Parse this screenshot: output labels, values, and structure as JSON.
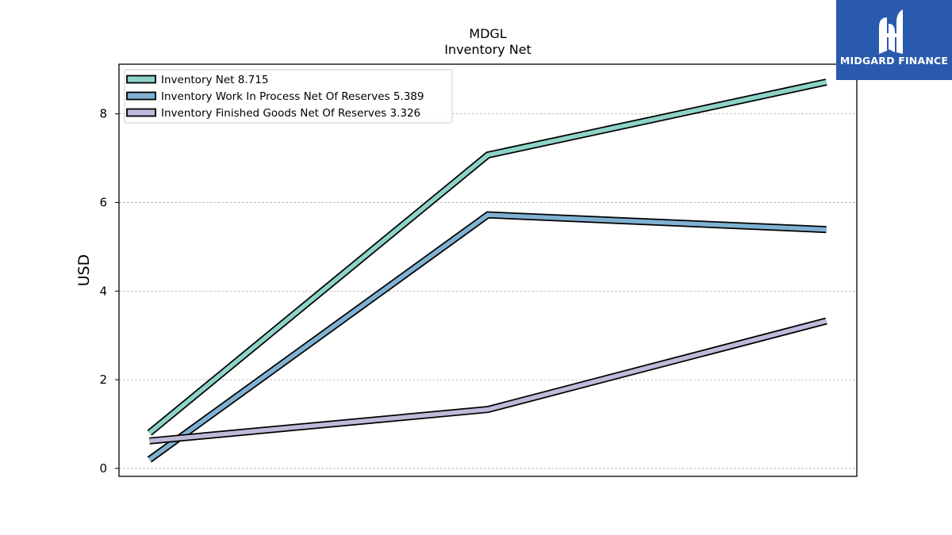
{
  "chart_data": {
    "type": "line",
    "title": "MDGL",
    "subtitle": "Inventory Net",
    "xlabel": "",
    "ylabel": "USD",
    "x": [
      0,
      1,
      2
    ],
    "xlim": [
      -0.09,
      2.09
    ],
    "ylim": [
      -0.18,
      9.12
    ],
    "yticks": [
      0,
      2,
      4,
      6,
      8
    ],
    "grid": "y-dashed",
    "legend_position": "top-left",
    "series": [
      {
        "name": "Inventory Net",
        "legend_label": "Inventory Net  8.715",
        "values": [
          0.8,
          7.07,
          8.715
        ],
        "color": "#8dd3c7"
      },
      {
        "name": "Inventory Work In Process Net Of Reserves",
        "legend_label": "Inventory Work In Process Net Of Reserves  5.389",
        "values": [
          0.2,
          5.72,
          5.389
        ],
        "color": "#80b1d3"
      },
      {
        "name": "Inventory Finished Goods Net Of Reserves",
        "legend_label": "Inventory Finished Goods Net Of Reserves  3.326",
        "values": [
          0.62,
          1.33,
          3.326
        ],
        "color": "#bebada"
      }
    ]
  },
  "logo": {
    "text": "MIDGARD FINANCE",
    "background": "#2a5aad"
  }
}
